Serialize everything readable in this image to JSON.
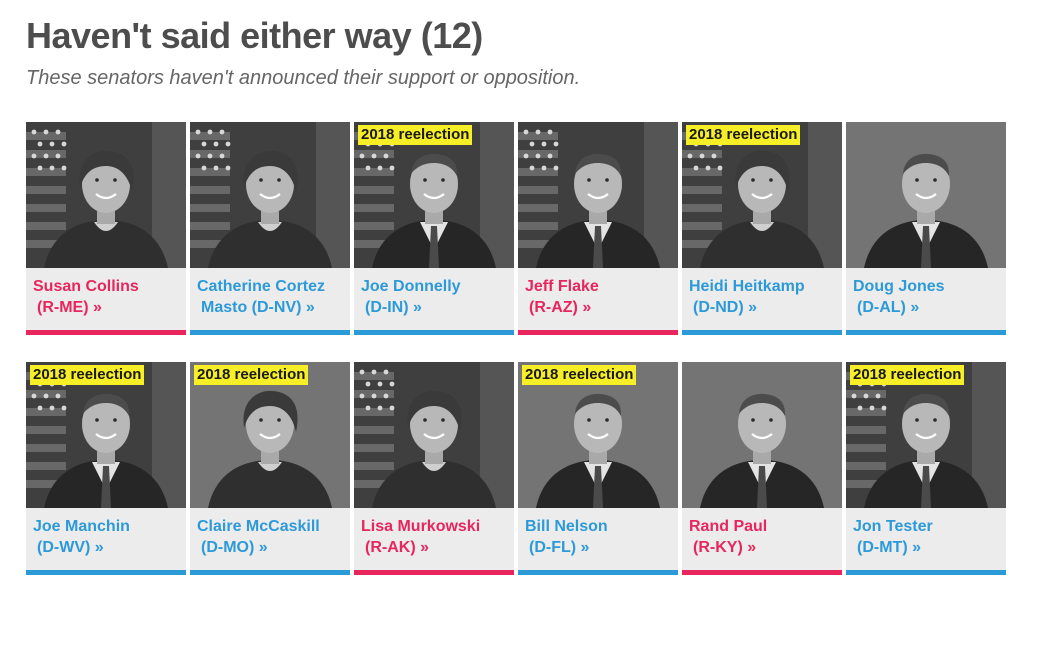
{
  "section": {
    "title": "Haven't said either way (12)",
    "subtitle": "These senators haven't announced their support or opposition."
  },
  "colors": {
    "democrat": "#2d9ad8",
    "republican": "#e8265e",
    "badge": "#f6ee26",
    "card_background": "#ececec"
  },
  "senators": [
    {
      "line1": "Susan Collins",
      "line2": "(R-ME) »",
      "party": "R",
      "badge": "",
      "photo": "woman-portrait-flag-bg"
    },
    {
      "line1": "Catherine Cortez",
      "line2": "Masto (D-NV) »",
      "party": "D",
      "badge": "",
      "photo": "woman-portrait-flag-bg"
    },
    {
      "line1": "Joe Donnelly",
      "line2": "(D-IN) »",
      "party": "D",
      "badge": "2018 reelection",
      "photo": "man-portrait-flag-bg"
    },
    {
      "line1": "Jeff Flake",
      "line2": "(R-AZ) »",
      "party": "R",
      "badge": "",
      "photo": "man-portrait-flag-bg"
    },
    {
      "line1": "Heidi Heitkamp",
      "line2": "(D-ND) »",
      "party": "D",
      "badge": "2018 reelection",
      "photo": "woman-portrait-flag-bg"
    },
    {
      "line1": "Doug Jones",
      "line2": "(D-AL) »",
      "party": "D",
      "badge": "",
      "photo": "man-portrait-plain-bg"
    },
    {
      "line1": "Joe Manchin",
      "line2": "(D-WV) »",
      "party": "D",
      "badge": "2018 reelection",
      "photo": "man-portrait-flag-bg"
    },
    {
      "line1": "Claire McCaskill",
      "line2": "(D-MO) »",
      "party": "D",
      "badge": "2018 reelection",
      "photo": "woman-portrait-plain-bg"
    },
    {
      "line1": "Lisa Murkowski",
      "line2": "(R-AK) »",
      "party": "R",
      "badge": "",
      "photo": "woman-portrait-flag-bg"
    },
    {
      "line1": "Bill Nelson",
      "line2": "(D-FL) »",
      "party": "D",
      "badge": "2018 reelection",
      "photo": "man-portrait-plain-bg"
    },
    {
      "line1": "Rand Paul",
      "line2": "(R-KY) »",
      "party": "R",
      "badge": "",
      "photo": "man-portrait-plain-bg"
    },
    {
      "line1": "Jon Tester",
      "line2": "(D-MT) »",
      "party": "D",
      "badge": "2018 reelection",
      "photo": "man-portrait-flag-bg"
    }
  ]
}
